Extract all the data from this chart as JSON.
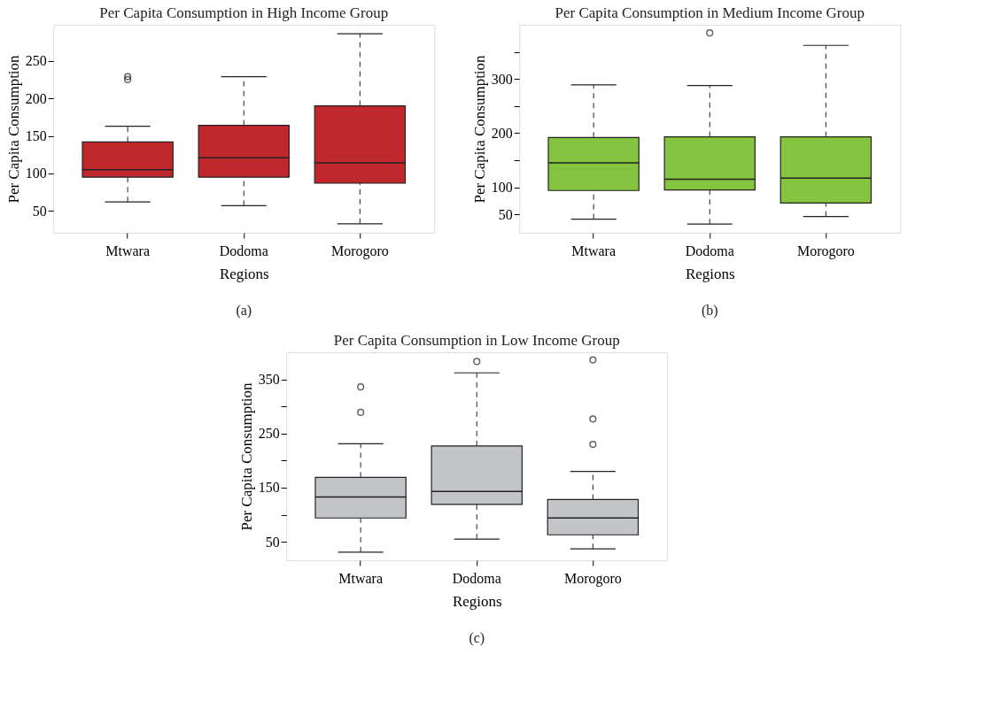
{
  "chart_data": [
    {
      "type": "box",
      "title": "Per Capita Consumption in High Income Group",
      "xlabel": "Regions",
      "ylabel": "Per Capita Consumption",
      "categories": [
        "Mtwara",
        "Dodoma",
        "Morogoro"
      ],
      "ylim": [
        21,
        298
      ],
      "yticks": [
        50,
        100,
        150,
        200,
        250
      ],
      "annotations": [
        "(a)"
      ],
      "series": [
        {
          "color": "#c0272d",
          "boxes": [
            {
              "low": 62,
              "q1": 95,
              "median": 105,
              "q3": 142,
              "high": 163,
              "outliers": [
                229,
                225
              ]
            },
            {
              "low": 57,
              "q1": 95,
              "median": 121,
              "q3": 164,
              "high": 229
            },
            {
              "low": 33,
              "q1": 87,
              "median": 114,
              "q3": 190,
              "high": 286
            }
          ]
        }
      ]
    },
    {
      "type": "box",
      "title": "Per Capita Consumption in Medium Income Group",
      "xlabel": "Regions",
      "ylabel": "Per Capita Consumption",
      "categories": [
        "Mtwara",
        "Dodoma",
        "Morogoro"
      ],
      "ylim": [
        16,
        400
      ],
      "yticks": [
        50,
        100,
        {
          "value": 150,
          "label": null
        },
        200,
        {
          "value": 250,
          "label": null
        },
        300,
        {
          "value": 350,
          "label": null
        }
      ],
      "annotations": [
        "(b)"
      ],
      "series": [
        {
          "color": "#85c440",
          "boxes": [
            {
              "low": 41,
              "q1": 94,
              "median": 145,
              "q3": 192,
              "high": 289
            },
            {
              "low": 32,
              "q1": 95,
              "median": 115,
              "q3": 193,
              "high": 288,
              "outliers": [
                385
              ]
            },
            {
              "low": 46,
              "q1": 71,
              "median": 117,
              "q3": 193,
              "high": 362
            }
          ]
        }
      ]
    },
    {
      "type": "box",
      "title": "Per Capita Consumption in Low Income Group",
      "xlabel": "Regions",
      "ylabel": "Per Capita Consumption",
      "categories": [
        "Mtwara",
        "Dodoma",
        "Morogoro"
      ],
      "ylim": [
        16,
        400
      ],
      "yticks": [
        50,
        {
          "value": 100,
          "label": null
        },
        150,
        {
          "value": 200,
          "label": null
        },
        250,
        {
          "value": 300,
          "label": null
        },
        350
      ],
      "annotations": [
        "(c)"
      ],
      "series": [
        {
          "color": "#c4c5c9",
          "boxes": [
            {
              "low": 31,
              "q1": 94,
              "median": 133,
              "q3": 169,
              "high": 231,
              "outliers": [
                336,
                289
              ]
            },
            {
              "low": 55,
              "q1": 119,
              "median": 143,
              "q3": 227,
              "high": 362,
              "outliers": [
                383
              ]
            },
            {
              "low": 37,
              "q1": 63,
              "median": 94,
              "q3": 128,
              "high": 180,
              "outliers": [
                386,
                277,
                230
              ]
            }
          ]
        }
      ]
    }
  ]
}
